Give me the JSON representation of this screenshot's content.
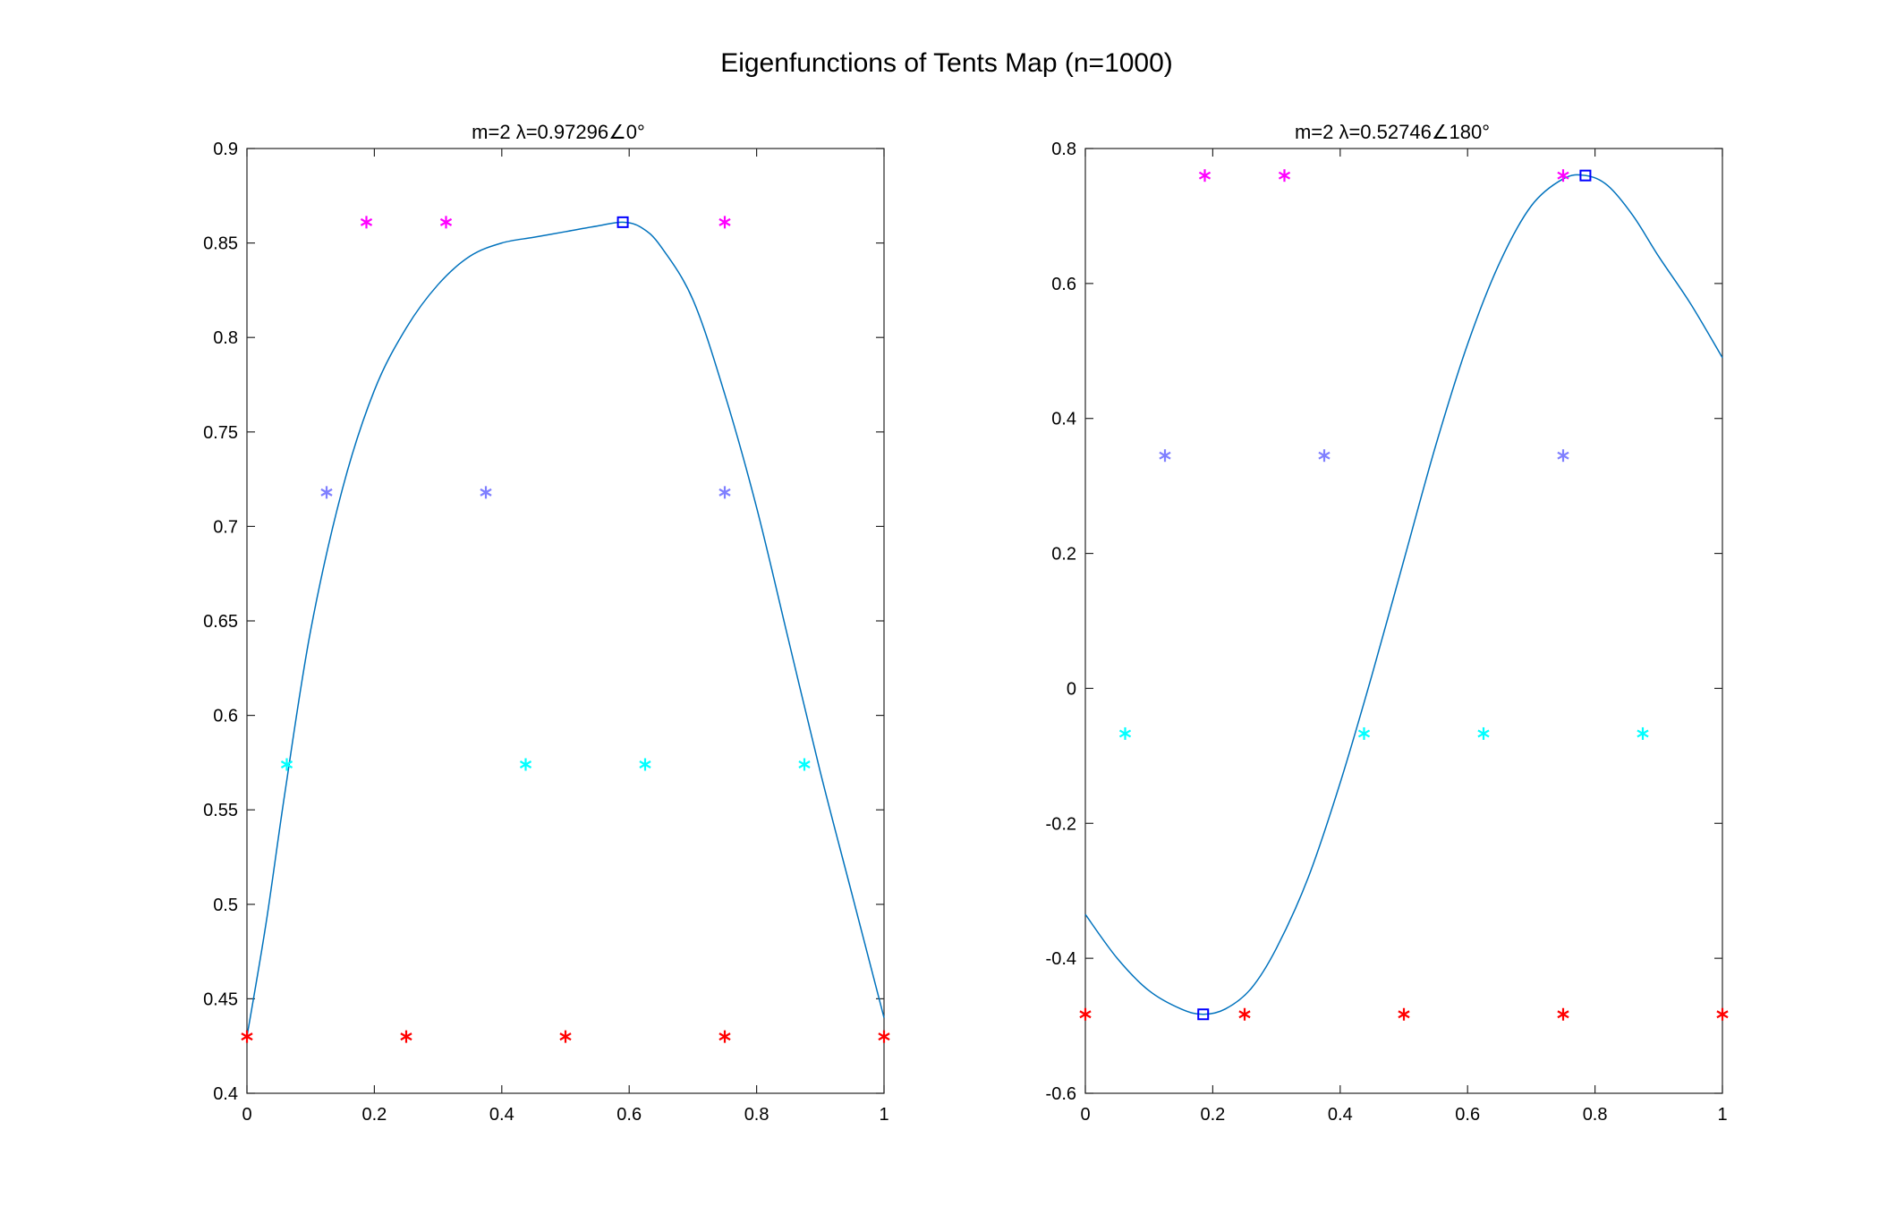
{
  "figure": {
    "title": "Eigenfunctions of Tents Map (n=1000)"
  },
  "chart_data": [
    {
      "type": "line",
      "title": "m=2 λ=0.97296∠0°",
      "xlabel": "",
      "ylabel": "",
      "xlim": [
        0,
        1
      ],
      "ylim": [
        0.4,
        0.9
      ],
      "xticks": [
        0,
        0.2,
        0.4,
        0.6,
        0.8,
        1
      ],
      "xtick_labels": [
        "0",
        "0.2",
        "0.4",
        "0.6",
        "0.8",
        "1"
      ],
      "yticks": [
        0.4,
        0.45,
        0.5,
        0.55,
        0.6,
        0.65,
        0.7,
        0.75,
        0.8,
        0.85,
        0.9
      ],
      "ytick_labels": [
        "0.4",
        "0.45",
        "0.5",
        "0.55",
        "0.6",
        "0.65",
        "0.7",
        "0.75",
        "0.8",
        "0.85",
        "0.9"
      ],
      "grid": false,
      "line": {
        "color": "#0072BD",
        "x": [
          0,
          0.03,
          0.06,
          0.1,
          0.15,
          0.2,
          0.25,
          0.3,
          0.35,
          0.4,
          0.45,
          0.5,
          0.55,
          0.59,
          0.62,
          0.65,
          0.7,
          0.75,
          0.8,
          0.85,
          0.9,
          0.95,
          1.0
        ],
        "y": [
          0.43,
          0.49,
          0.56,
          0.645,
          0.72,
          0.772,
          0.805,
          0.828,
          0.843,
          0.85,
          0.853,
          0.856,
          0.859,
          0.861,
          0.858,
          0.848,
          0.82,
          0.77,
          0.71,
          0.64,
          0.57,
          0.505,
          0.44
        ]
      },
      "markers": [
        {
          "x": 0.59,
          "y": 0.861,
          "shape": "square",
          "color": "#0000FF"
        }
      ],
      "star_groups": [
        {
          "color": "#FF00FF",
          "x": [
            0.1875,
            0.3125,
            0.75
          ],
          "y": 0.861
        },
        {
          "color": "#7F7FFF",
          "x": [
            0.125,
            0.375,
            0.75
          ],
          "y": 0.718
        },
        {
          "color": "#00FFFF",
          "x": [
            0.0625,
            0.4375,
            0.625,
            0.875
          ],
          "y": 0.574
        },
        {
          "color": "#FF0000",
          "x": [
            0,
            0.25,
            0.5,
            0.75,
            1.0
          ],
          "y": 0.43
        }
      ]
    },
    {
      "type": "line",
      "title": "m=2 λ=0.52746∠180°",
      "xlabel": "",
      "ylabel": "",
      "xlim": [
        0,
        1
      ],
      "ylim": [
        -0.6,
        0.8
      ],
      "xticks": [
        0,
        0.2,
        0.4,
        0.6,
        0.8,
        1
      ],
      "xtick_labels": [
        "0",
        "0.2",
        "0.4",
        "0.6",
        "0.8",
        "1"
      ],
      "yticks": [
        -0.6,
        -0.4,
        -0.2,
        0,
        0.2,
        0.4,
        0.6,
        0.8
      ],
      "ytick_labels": [
        "-0.6",
        "-0.4",
        "-0.2",
        "0",
        "0.2",
        "0.4",
        "0.6",
        "0.8"
      ],
      "grid": false,
      "line": {
        "color": "#0072BD",
        "x": [
          0,
          0.05,
          0.1,
          0.15,
          0.185,
          0.22,
          0.26,
          0.3,
          0.35,
          0.4,
          0.45,
          0.5,
          0.55,
          0.6,
          0.65,
          0.7,
          0.75,
          0.785,
          0.82,
          0.86,
          0.9,
          0.95,
          1.0
        ],
        "y": [
          -0.335,
          -0.4,
          -0.448,
          -0.475,
          -0.483,
          -0.475,
          -0.445,
          -0.385,
          -0.28,
          -0.14,
          0.02,
          0.19,
          0.36,
          0.51,
          0.63,
          0.715,
          0.755,
          0.76,
          0.745,
          0.7,
          0.64,
          0.57,
          0.49
        ]
      },
      "markers": [
        {
          "x": 0.185,
          "y": -0.483,
          "shape": "square",
          "color": "#0000FF"
        },
        {
          "x": 0.785,
          "y": 0.76,
          "shape": "square",
          "color": "#0000FF"
        }
      ],
      "star_groups": [
        {
          "color": "#FF00FF",
          "x": [
            0.1875,
            0.3125,
            0.75
          ],
          "y": 0.76
        },
        {
          "color": "#7F7FFF",
          "x": [
            0.125,
            0.375,
            0.75
          ],
          "y": 0.345
        },
        {
          "color": "#00FFFF",
          "x": [
            0.0625,
            0.4375,
            0.625,
            0.875
          ],
          "y": -0.067
        },
        {
          "color": "#FF0000",
          "x": [
            0,
            0.25,
            0.5,
            0.75,
            1.0
          ],
          "y": -0.483
        }
      ]
    }
  ]
}
